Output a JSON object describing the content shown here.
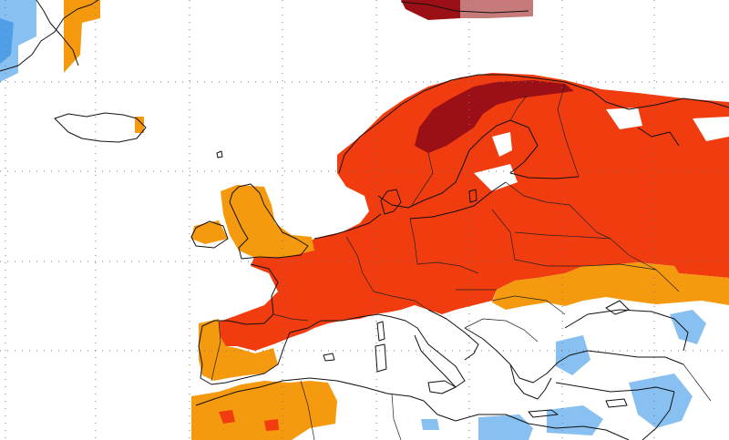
{
  "map": {
    "colors": {
      "dark_red": "#9b1016",
      "red": "#f03c0f",
      "orange": "#f59a0f",
      "light_blue": "#88c0f2",
      "blue": "#4e9fe8",
      "land": "#ffffff",
      "coast": "#111111",
      "grid": "#777777"
    },
    "legend": [],
    "title": ""
  }
}
